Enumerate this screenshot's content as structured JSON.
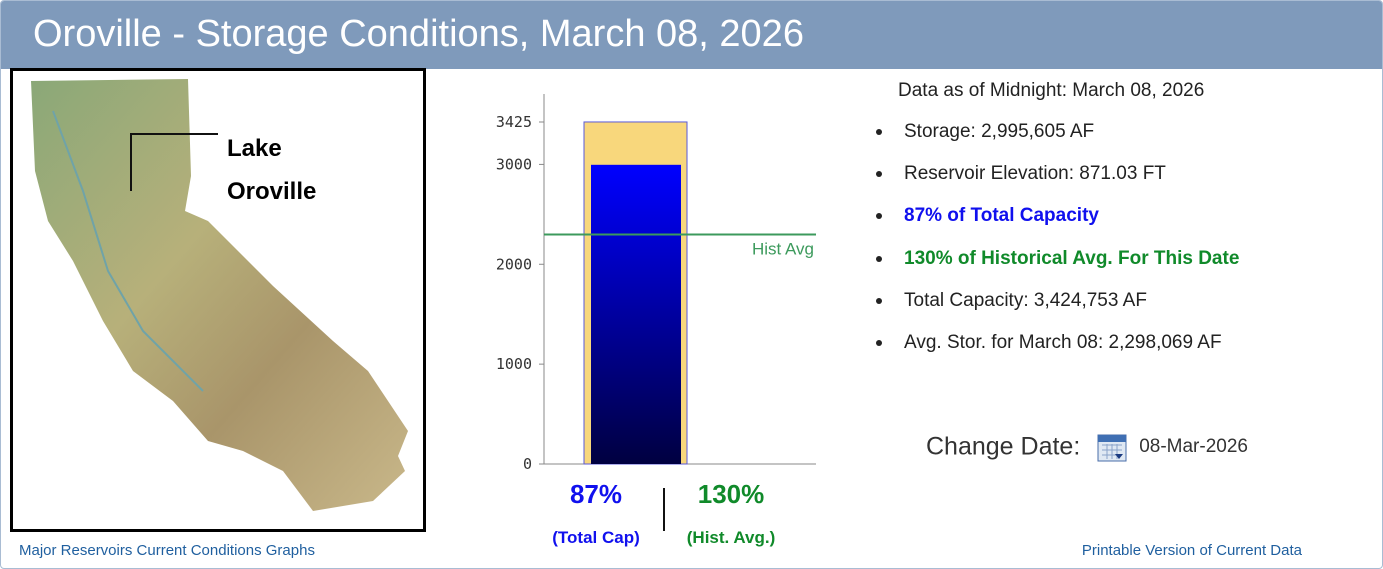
{
  "header": {
    "title": "Oroville - Storage Conditions, March 08, 2026"
  },
  "map": {
    "label": [
      "Lake",
      "Oroville"
    ]
  },
  "chart_data": {
    "type": "bar",
    "ylim": [
      0,
      3705
    ],
    "yticks": [
      0,
      1000,
      2000,
      3000,
      3425
    ],
    "capacity": 3425,
    "capacity_color": "#f8d77c",
    "storage": 2996,
    "storage_color": "#0000ff",
    "hist_avg": {
      "value": 2298,
      "label": "Hist Avg"
    },
    "hist_color": "#3c9a5c",
    "annotations": [
      {
        "value": "87%",
        "caption": "(Total Cap)",
        "color": "#1010ee"
      },
      {
        "value": "130%",
        "caption": "(Hist. Avg.)",
        "color": "#108a2a"
      }
    ]
  },
  "info": {
    "heading": "Data as of Midnight: March 08, 2026",
    "items": [
      "Storage: 2,995,605 AF",
      "Reservoir Elevation: 871.03 FT",
      "87% of Total Capacity",
      "130% of Historical Avg. For This Date",
      "Total Capacity: 3,424,753 AF",
      "Avg. Stor. for March 08: 2,298,069 AF"
    ]
  },
  "change_date": {
    "label": "Change Date:",
    "value": "08-Mar-2026"
  },
  "links": {
    "left": "Major Reservoirs Current Conditions Graphs",
    "right": "Printable Version of Current Data"
  }
}
